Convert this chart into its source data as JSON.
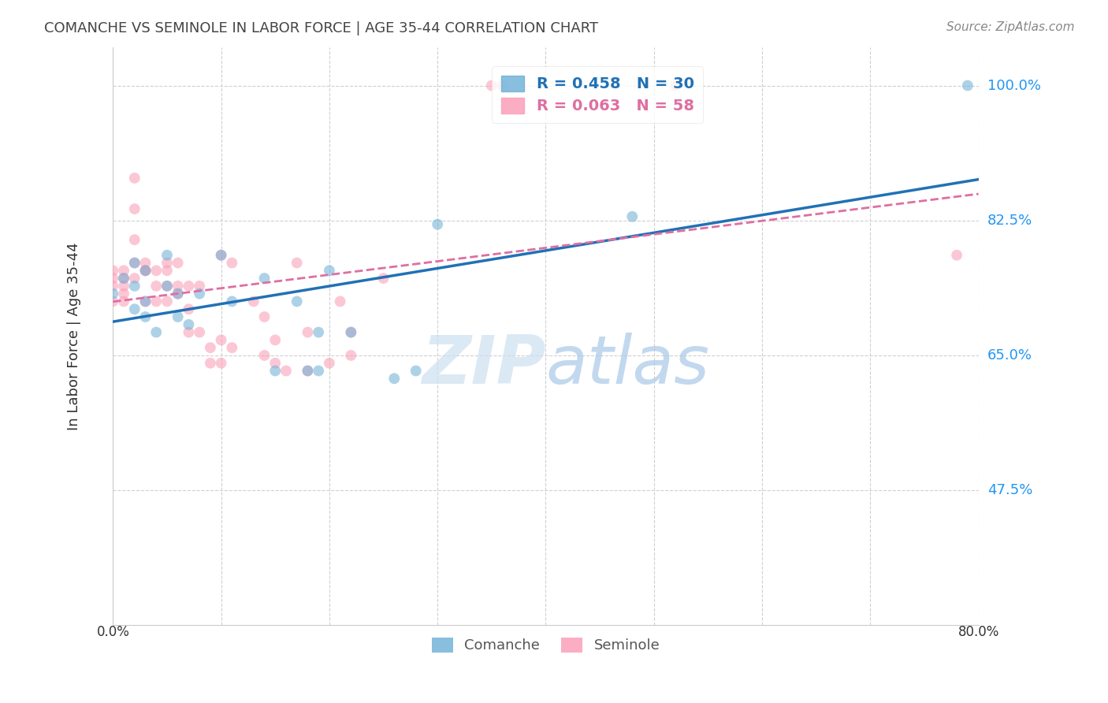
{
  "title": "COMANCHE VS SEMINOLE IN LABOR FORCE | AGE 35-44 CORRELATION CHART",
  "source": "Source: ZipAtlas.com",
  "ylabel": "In Labor Force | Age 35-44",
  "ytick_labels": [
    "100.0%",
    "82.5%",
    "65.0%",
    "47.5%"
  ],
  "ytick_values": [
    1.0,
    0.825,
    0.65,
    0.475
  ],
  "xlim": [
    0.0,
    0.8
  ],
  "ylim": [
    0.3,
    1.05
  ],
  "legend_comanche": "R = 0.458   N = 30",
  "legend_seminole": "R = 0.063   N = 58",
  "watermark_zip": "ZIP",
  "watermark_atlas": "atlas",
  "comanche_color": "#6baed6",
  "seminole_color": "#fb9ab4",
  "trendline_comanche_color": "#2171b5",
  "trendline_seminole_color": "#de6fa1",
  "comanche_x": [
    0.0,
    0.01,
    0.02,
    0.02,
    0.02,
    0.03,
    0.03,
    0.03,
    0.04,
    0.05,
    0.05,
    0.06,
    0.06,
    0.07,
    0.08,
    0.1,
    0.11,
    0.14,
    0.15,
    0.17,
    0.18,
    0.19,
    0.19,
    0.2,
    0.22,
    0.26,
    0.28,
    0.3,
    0.48,
    0.79
  ],
  "comanche_y": [
    0.73,
    0.75,
    0.77,
    0.74,
    0.71,
    0.76,
    0.72,
    0.7,
    0.68,
    0.78,
    0.74,
    0.73,
    0.7,
    0.69,
    0.73,
    0.78,
    0.72,
    0.75,
    0.63,
    0.72,
    0.63,
    0.68,
    0.63,
    0.76,
    0.68,
    0.62,
    0.63,
    0.82,
    0.83,
    1.0
  ],
  "seminole_x": [
    0.0,
    0.0,
    0.0,
    0.0,
    0.01,
    0.01,
    0.01,
    0.01,
    0.01,
    0.02,
    0.02,
    0.02,
    0.02,
    0.02,
    0.03,
    0.03,
    0.03,
    0.03,
    0.04,
    0.04,
    0.04,
    0.05,
    0.05,
    0.05,
    0.05,
    0.06,
    0.06,
    0.06,
    0.07,
    0.07,
    0.07,
    0.08,
    0.08,
    0.09,
    0.09,
    0.1,
    0.1,
    0.1,
    0.11,
    0.11,
    0.13,
    0.14,
    0.14,
    0.15,
    0.15,
    0.16,
    0.17,
    0.18,
    0.18,
    0.2,
    0.21,
    0.22,
    0.22,
    0.25,
    0.35,
    0.36,
    0.52,
    0.78
  ],
  "seminole_y": [
    0.76,
    0.75,
    0.74,
    0.72,
    0.76,
    0.75,
    0.74,
    0.73,
    0.72,
    0.88,
    0.84,
    0.8,
    0.77,
    0.75,
    0.77,
    0.76,
    0.76,
    0.72,
    0.76,
    0.74,
    0.72,
    0.77,
    0.76,
    0.74,
    0.72,
    0.77,
    0.74,
    0.73,
    0.74,
    0.71,
    0.68,
    0.74,
    0.68,
    0.66,
    0.64,
    0.78,
    0.67,
    0.64,
    0.77,
    0.66,
    0.72,
    0.7,
    0.65,
    0.67,
    0.64,
    0.63,
    0.77,
    0.68,
    0.63,
    0.64,
    0.72,
    0.68,
    0.65,
    0.75,
    1.0,
    1.0,
    1.0,
    0.78
  ],
  "background_color": "#ffffff",
  "grid_color": "#d0d0d0",
  "marker_size": 100,
  "marker_alpha": 0.55
}
